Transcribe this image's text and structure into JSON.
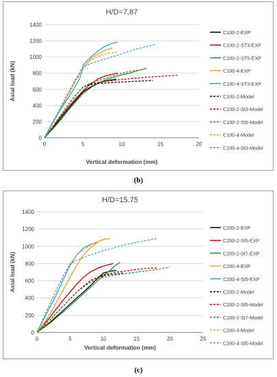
{
  "chart_data": [
    {
      "type": "line",
      "title": "H/D=7.87",
      "xlabel": "Vertical deformation (mm)",
      "ylabel": "Axial load (kN)",
      "xlim": [
        0,
        20
      ],
      "ylim": [
        0,
        1400
      ],
      "xticks": [
        0,
        5,
        10,
        15,
        20
      ],
      "yticks": [
        0,
        200,
        400,
        600,
        800,
        1000,
        1200,
        1400
      ],
      "grid": "horizontal",
      "legend": "right",
      "series": [
        {
          "name": "C100-2-EXP",
          "color": "#000000",
          "dash": false,
          "x": [
            0,
            1,
            2,
            3,
            4,
            5,
            6,
            7,
            8,
            9,
            9.3
          ],
          "y": [
            0,
            110,
            230,
            350,
            460,
            570,
            630,
            680,
            705,
            720,
            725
          ]
        },
        {
          "name": "C100-2-ST3-EXP",
          "color": "#c00000",
          "dash": false,
          "x": [
            0,
            1,
            2,
            3,
            4,
            5,
            6,
            7,
            8,
            9,
            9.5
          ],
          "y": [
            0,
            120,
            250,
            370,
            480,
            580,
            670,
            730,
            770,
            790,
            800
          ]
        },
        {
          "name": "C100-2-ST5-EXP",
          "color": "#2e8b3a",
          "dash": false,
          "x": [
            0,
            1,
            2,
            3,
            4,
            5,
            6,
            7,
            8,
            9,
            10,
            11,
            12,
            13.2
          ],
          "y": [
            0,
            100,
            210,
            330,
            440,
            550,
            620,
            680,
            720,
            750,
            780,
            800,
            830,
            860
          ]
        },
        {
          "name": "C100-4-EXP",
          "color": "#f0a020",
          "dash": false,
          "x": [
            0,
            1,
            2,
            3,
            4,
            5,
            5.6,
            6,
            7,
            8,
            8.8
          ],
          "y": [
            0,
            170,
            340,
            520,
            700,
            850,
            930,
            980,
            1040,
            1090,
            1110
          ]
        },
        {
          "name": "C100-4-ST3-EXP",
          "color": "#3aa0d0",
          "dash": false,
          "x": [
            0,
            1,
            2,
            3,
            3.5,
            4,
            4.5,
            4.8,
            5,
            6,
            7,
            8,
            9,
            9.5
          ],
          "y": [
            0,
            180,
            340,
            480,
            560,
            640,
            720,
            800,
            900,
            1000,
            1080,
            1140,
            1175,
            1185
          ]
        },
        {
          "name": "C100-2-Model",
          "color": "#000000",
          "dash": true,
          "x": [
            0,
            1,
            2,
            3,
            4,
            5,
            6,
            8,
            10,
            12,
            14
          ],
          "y": [
            0,
            130,
            265,
            400,
            520,
            630,
            660,
            680,
            690,
            700,
            710
          ]
        },
        {
          "name": "C100-2-St3-Model",
          "color": "#c00000",
          "dash": true,
          "x": [
            0,
            1,
            2,
            3,
            4,
            5,
            6,
            8,
            10,
            12,
            14,
            16,
            17.3
          ],
          "y": [
            0,
            130,
            265,
            400,
            520,
            630,
            670,
            700,
            720,
            740,
            755,
            765,
            775
          ]
        },
        {
          "name": "C100-2-St5-Model",
          "color": "#2e8b3a",
          "dash": true,
          "x": [
            0,
            1,
            2,
            3,
            4,
            5,
            6,
            8,
            10,
            12
          ],
          "y": [
            0,
            130,
            265,
            400,
            520,
            630,
            680,
            740,
            800,
            840
          ]
        },
        {
          "name": "C100-4-Model",
          "color": "#f0a020",
          "dash": true,
          "x": [
            0,
            1,
            2,
            3,
            4,
            5,
            6,
            7,
            8,
            9,
            9.5
          ],
          "y": [
            0,
            180,
            360,
            540,
            720,
            880,
            960,
            1010,
            1040,
            1055,
            1060
          ]
        },
        {
          "name": "C100-4-St3-Model",
          "color": "#3aa0d0",
          "dash": true,
          "x": [
            0,
            1,
            2,
            3,
            4,
            5,
            6,
            8,
            10,
            12,
            14.5
          ],
          "y": [
            0,
            180,
            360,
            540,
            720,
            880,
            920,
            980,
            1040,
            1100,
            1160
          ]
        }
      ]
    },
    {
      "type": "line",
      "title": "H/D=15.75",
      "xlabel": "Vertical deformation (mm)",
      "ylabel": "Axial load (kN)",
      "xlim": [
        0,
        25
      ],
      "ylim": [
        0,
        1400
      ],
      "xticks": [
        0,
        5,
        10,
        15,
        20,
        25
      ],
      "yticks": [
        0,
        200,
        400,
        600,
        800,
        1000,
        1200,
        1400
      ],
      "grid": "horizontal",
      "legend": "right",
      "series": [
        {
          "name": "C200-2-EXP",
          "color": "#000000",
          "dash": false,
          "x": [
            0,
            2,
            4,
            6,
            8,
            9,
            10,
            11,
            12
          ],
          "y": [
            0,
            120,
            260,
            400,
            540,
            620,
            690,
            710,
            720
          ]
        },
        {
          "name": "C200-2-St5-EXP",
          "color": "#c00000",
          "dash": false,
          "x": [
            0,
            1,
            2,
            3,
            4,
            5,
            6,
            7,
            8,
            9,
            10,
            11,
            11.5
          ],
          "y": [
            0,
            90,
            180,
            280,
            380,
            470,
            560,
            640,
            700,
            740,
            770,
            790,
            800
          ]
        },
        {
          "name": "C200-2-St7-EXP",
          "color": "#2e8b3a",
          "dash": false,
          "x": [
            0,
            2,
            4,
            6,
            8,
            9,
            10,
            11,
            11.5,
            12,
            12.5
          ],
          "y": [
            0,
            110,
            240,
            380,
            520,
            590,
            660,
            720,
            760,
            790,
            810
          ]
        },
        {
          "name": "C200-4-EXP",
          "color": "#f0a020",
          "dash": false,
          "x": [
            0,
            1,
            2,
            3,
            4,
            5,
            6,
            7,
            8,
            9,
            10,
            11
          ],
          "y": [
            0,
            100,
            220,
            360,
            500,
            640,
            780,
            900,
            980,
            1040,
            1080,
            1090
          ]
        },
        {
          "name": "C200-4-St5-EXP",
          "color": "#3aa0d0",
          "dash": false,
          "x": [
            0,
            1,
            2,
            3,
            4,
            5,
            6,
            7,
            8,
            9
          ],
          "y": [
            0,
            150,
            300,
            450,
            620,
            780,
            900,
            980,
            1020,
            1040
          ]
        },
        {
          "name": "C200-2-Model",
          "color": "#000000",
          "dash": true,
          "x": [
            0,
            2,
            4,
            6,
            8,
            10,
            12,
            13
          ],
          "y": [
            0,
            150,
            310,
            470,
            600,
            660,
            680,
            690
          ]
        },
        {
          "name": "C200-2-St5-Model",
          "color": "#c00000",
          "dash": true,
          "x": [
            0,
            2,
            4,
            6,
            8,
            10,
            12,
            14,
            16,
            18
          ],
          "y": [
            0,
            150,
            310,
            470,
            600,
            670,
            700,
            720,
            740,
            750
          ]
        },
        {
          "name": "C200-2-St7-Model",
          "color": "#2e8b3a",
          "dash": true,
          "x": [
            0,
            2,
            4,
            6,
            8,
            10,
            12,
            14,
            16,
            18,
            20
          ],
          "y": [
            0,
            150,
            310,
            470,
            580,
            640,
            670,
            690,
            710,
            730,
            760
          ]
        },
        {
          "name": "C200-4-Model",
          "color": "#f0a020",
          "dash": true,
          "x": [
            0,
            1,
            2,
            3,
            4,
            5,
            6,
            7,
            8,
            9,
            10,
            10.5
          ],
          "y": [
            0,
            170,
            340,
            500,
            660,
            800,
            900,
            960,
            1010,
            1050,
            1075,
            1085
          ]
        },
        {
          "name": "C200-4-St5-Model",
          "color": "#3aa0d0",
          "dash": true,
          "x": [
            0,
            1,
            2,
            3,
            4,
            5,
            6,
            8,
            10,
            12,
            14,
            16,
            18
          ],
          "y": [
            0,
            170,
            340,
            500,
            660,
            790,
            840,
            900,
            950,
            990,
            1030,
            1060,
            1090
          ]
        }
      ]
    }
  ],
  "captions": [
    "(b)",
    "(c)"
  ]
}
